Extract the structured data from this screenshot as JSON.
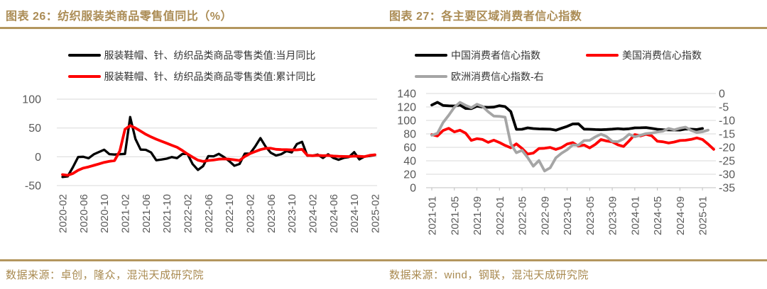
{
  "accent": {
    "gold_text": "#ab8c55",
    "gold_rule": "#b3965e",
    "grid": "#d9d9d9",
    "tick_text": "#595959"
  },
  "figures": [
    {
      "title": "图表 26：纺织服装类商品零售值同比（%）",
      "legend": [
        {
          "label": "服装鞋帽、针、纺织品类商品零售类值:当月同比",
          "color": "#000000"
        },
        {
          "label": "服装鞋帽、针、纺织品类商品零售类值:累计同比",
          "color": "#fe0000"
        }
      ],
      "source": "数据来源：卓创，隆众，混沌天成研究院"
    },
    {
      "title": "图表 27：各主要区域消费者信心指数",
      "legend": [
        {
          "label": "中国消费者信心指数",
          "color": "#000000"
        },
        {
          "label": "美国消费信心指数",
          "color": "#fe0000"
        },
        {
          "label": "欧洲消费信心指数-右",
          "color": "#a5a5a5"
        }
      ],
      "source": "数据来源：wind，钢联，混沌天成研究院"
    }
  ],
  "chart_data": [
    {
      "type": "line",
      "title": "纺织服装类商品零售值同比（%）",
      "x_start": "2020-02",
      "x_end": "2025-02",
      "x_interval": "monthly",
      "n_points": 61,
      "x_tick_every": 4,
      "x_tick_labels": [
        "2020-02",
        "2020-06",
        "2020-10",
        "2021-02",
        "2021-06",
        "2021-10",
        "2022-02",
        "2022-06",
        "2022-10",
        "2023-02",
        "2023-06",
        "2023-10",
        "2024-02",
        "2024-06",
        "2024-10",
        "2025-02"
      ],
      "ylim": [
        -50,
        100
      ],
      "y_ticks": [
        100,
        50,
        0,
        -50
      ],
      "grid": true,
      "legend_position": "top",
      "series": [
        {
          "name": "服装鞋帽、针、纺织品类商品零售类值:当月同比",
          "color": "#000000",
          "stroke_width": 3.3,
          "values": [
            -35,
            -34,
            -18,
            -0.5,
            0,
            -2.5,
            4.2,
            8.3,
            12.2,
            4.6,
            3.8,
            4.5,
            5,
            69,
            31,
            12.4,
            12.1,
            7.5,
            -6,
            -4.8,
            -3.3,
            -0.5,
            -2.3,
            4.8,
            4.8,
            -12.7,
            -22.8,
            -16.2,
            1.2,
            0.8,
            5.1,
            -0.5,
            -7.5,
            -15.6,
            -12.5,
            5.4,
            5.4,
            17.7,
            32.4,
            17.6,
            6.9,
            2.3,
            4.5,
            9.9,
            7.5,
            22,
            26,
            1.9,
            1.9,
            3.8,
            -2,
            4.4,
            -1.9,
            -5.2,
            -1.9,
            -0.4,
            8,
            -4.5,
            0.3,
            1.5,
            3
          ]
        },
        {
          "name": "服装鞋帽、针、纺织品类商品零售类值:累计同比",
          "color": "#fe0000",
          "stroke_width": 3.8,
          "values": [
            -31,
            -32.2,
            -29,
            -23.5,
            -19.6,
            -17.5,
            -15,
            -12.4,
            -9.7,
            -7.9,
            -6.6,
            10,
            47.6,
            54.2,
            50,
            44.5,
            39,
            34.5,
            30.5,
            27,
            23.5,
            20,
            16.5,
            11,
            4.8,
            -0.7,
            -5.8,
            -8.1,
            -6.5,
            -5.6,
            -4.2,
            -3.8,
            -4.1,
            -5.2,
            -6.5,
            0.5,
            5.4,
            9,
            12.5,
            14.5,
            14.8,
            13,
            12.5,
            12.3,
            11.8,
            12,
            12.9,
            2.5,
            1.9,
            2.5,
            1.9,
            2.2,
            1.3,
            0.8,
            0.5,
            0.4,
            1.2,
            0.8,
            0.3,
            2.5,
            3.5
          ]
        }
      ]
    },
    {
      "type": "line",
      "title": "各主要区域消费者信心指数",
      "x_start": "2021-01",
      "x_end": "2025-03",
      "x_interval": "monthly",
      "n_points": 51,
      "x_tick_every": 4,
      "x_tick_labels": [
        "2021-01",
        "2021-05",
        "2021-09",
        "2022-01",
        "2022-05",
        "2022-09",
        "2023-01",
        "2023-05",
        "2023-09",
        "2024-01",
        "2024-05",
        "2024-09",
        "2025-01"
      ],
      "ylim_left": [
        0,
        140
      ],
      "y_ticks_left": [
        140,
        120,
        100,
        80,
        60,
        40,
        20,
        0
      ],
      "ylim_right": [
        -35,
        0
      ],
      "y_ticks_right": [
        0,
        -5,
        -10,
        -15,
        -20,
        -25,
        -30,
        -35
      ],
      "grid": true,
      "legend_position": "top",
      "series": [
        {
          "name": "中国消费者信心指数",
          "axis": "left",
          "color": "#000000",
          "stroke_width": 3.8,
          "values": [
            122.8,
            127,
            122.2,
            121.7,
            121.5,
            122.8,
            117.8,
            117.5,
            121.2,
            119.9,
            119.5,
            119.8,
            121.9,
            120.5,
            113.2,
            86.7,
            86.8,
            88.9,
            87.9,
            87.4,
            87.2,
            86.9,
            85.5,
            88.3,
            91.2,
            94.7,
            94.9,
            87,
            86.8,
            86.4,
            86.2,
            86.5,
            87.1,
            87.8,
            87,
            87.6,
            88.9,
            89.1,
            89.4,
            88.2,
            86.8,
            86.2,
            86,
            85.8,
            85.7,
            87.3,
            86.9,
            86.4,
            88
          ]
        },
        {
          "name": "美国消费信心指数",
          "axis": "left",
          "color": "#fe0000",
          "stroke_width": 3.8,
          "values": [
            79,
            76.8,
            84.9,
            88.3,
            82.9,
            85.5,
            81.2,
            70.3,
            72.8,
            71.7,
            67.4,
            70.6,
            67.2,
            62.8,
            59.4,
            65.2,
            58.4,
            50,
            51.5,
            58.2,
            58.6,
            59.9,
            56.8,
            59.7,
            64.9,
            67,
            62,
            63.5,
            59.2,
            64.4,
            71.6,
            69.5,
            68.1,
            63.8,
            61.3,
            69.7,
            79,
            76.9,
            79.4,
            77.2,
            69.1,
            68.2,
            66.4,
            67.9,
            70.1,
            70.5,
            71.8,
            74,
            71.7,
            64.7,
            57
          ]
        },
        {
          "name": "欧洲消费信心指数-右",
          "axis": "right",
          "color": "#a5a5a5",
          "stroke_width": 3.8,
          "values": [
            -15.5,
            -14.8,
            -10.8,
            -8.1,
            -5.1,
            -3.3,
            -4.4,
            -5.3,
            -4,
            -4.8,
            -6.8,
            -8.4,
            -8.5,
            -8.8,
            -18.7,
            -22,
            -21.1,
            -23.8,
            -27,
            -24.9,
            -28.8,
            -27.6,
            -23.9,
            -22.2,
            -20.9,
            -19.1,
            -19.2,
            -17.5,
            -17.4,
            -16.1,
            -15.1,
            -16,
            -17.8,
            -17.9,
            -16.9,
            -15.1,
            -16.1,
            -15.5,
            -14.9,
            -14.7,
            -14.3,
            -14,
            -13,
            -13.5,
            -12.9,
            -12.5,
            -13.7,
            -14.5,
            -14.2,
            -13.6
          ]
        }
      ]
    }
  ]
}
